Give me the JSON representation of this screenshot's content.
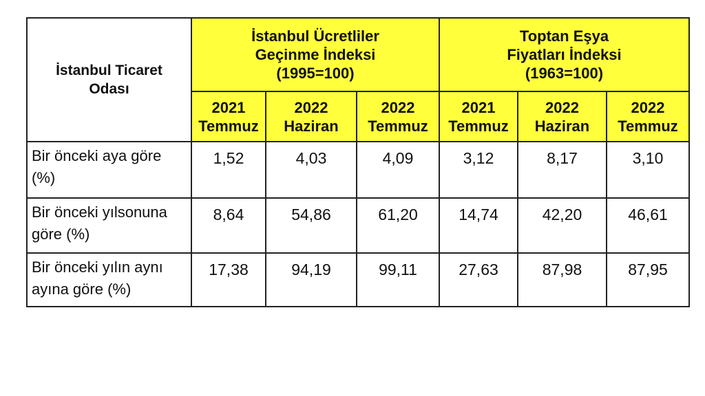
{
  "table": {
    "corner": [
      "İstanbul Ticaret",
      "Odası"
    ],
    "groups": [
      {
        "lines": [
          "İstanbul Ücretliler",
          "Geçinme İndeksi",
          "(1995=100)"
        ]
      },
      {
        "lines": [
          "Toptan Eşya",
          "Fiyatları İndeksi",
          "(1963=100)"
        ]
      }
    ],
    "columns": [
      [
        "2021",
        "Temmuz"
      ],
      [
        "2022",
        "Haziran"
      ],
      [
        "2022",
        "Temmuz"
      ],
      [
        "2021",
        "Temmuz"
      ],
      [
        "2022",
        "Haziran"
      ],
      [
        "2022",
        "Temmuz"
      ]
    ],
    "rows": [
      {
        "label": [
          "Bir önceki aya göre",
          "(%)"
        ],
        "cells": [
          "1,52",
          "4,03",
          "4,09",
          "3,12",
          "8,17",
          "3,10"
        ]
      },
      {
        "label": [
          "Bir önceki yılsonuna",
          "göre (%)"
        ],
        "cells": [
          "8,64",
          "54,86",
          "61,20",
          "14,74",
          "42,20",
          "46,61"
        ]
      },
      {
        "label": [
          "Bir önceki yılın aynı",
          "ayına göre (%)"
        ],
        "cells": [
          "17,38",
          "94,19",
          "99,11",
          "27,63",
          "87,98",
          "87,95"
        ]
      }
    ]
  }
}
